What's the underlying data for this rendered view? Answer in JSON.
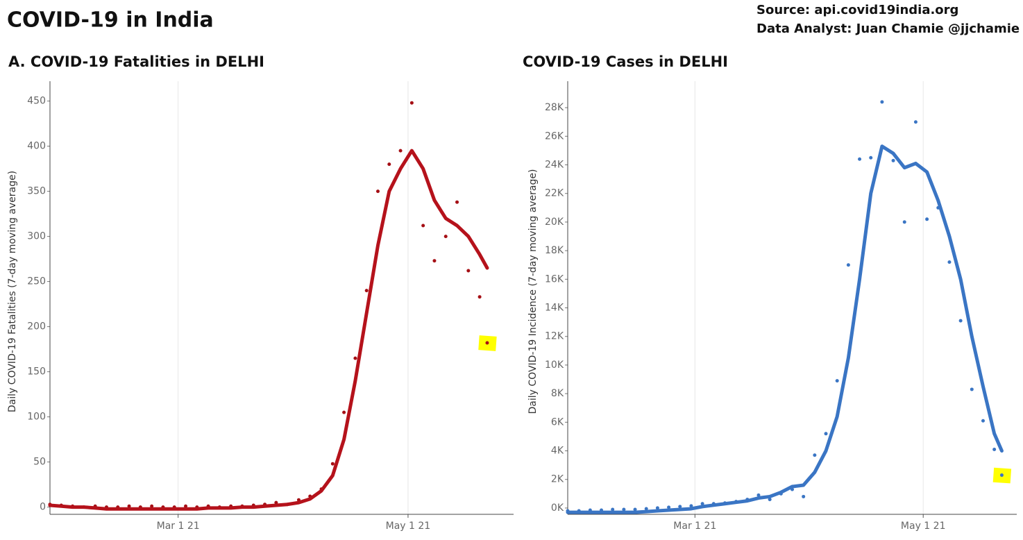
{
  "header": {
    "title": "COVID-19 in India",
    "source": "Source: api.covid19india.org",
    "analyst": "Data Analyst:  Juan Chamie @jjchamie"
  },
  "chart_data": [
    {
      "type": "dotline",
      "title": "A. COVID-19 Fatalities in DELHI",
      "y_label": "Daily COVID-19 Fatalities (7-day moving average)",
      "x": [
        "2021-01-26",
        "2021-01-29",
        "2021-02-01",
        "2021-02-04",
        "2021-02-07",
        "2021-02-10",
        "2021-02-13",
        "2021-02-16",
        "2021-02-19",
        "2021-02-22",
        "2021-02-25",
        "2021-02-28",
        "2021-03-03",
        "2021-03-06",
        "2021-03-09",
        "2021-03-12",
        "2021-03-15",
        "2021-03-18",
        "2021-03-21",
        "2021-03-24",
        "2021-03-27",
        "2021-03-30",
        "2021-04-02",
        "2021-04-05",
        "2021-04-08",
        "2021-04-11",
        "2021-04-14",
        "2021-04-17",
        "2021-04-20",
        "2021-04-23",
        "2021-04-26",
        "2021-04-29",
        "2021-05-02",
        "2021-05-05",
        "2021-05-08",
        "2021-05-11",
        "2021-05-14",
        "2021-05-17",
        "2021-05-20",
        "2021-05-22"
      ],
      "series": [
        {
          "marker": "dot",
          "color": "#a50f15",
          "values": [
            3,
            2,
            1,
            0,
            1,
            0,
            0,
            1,
            0,
            1,
            0,
            0,
            1,
            0,
            1,
            0,
            1,
            1,
            2,
            3,
            5,
            3,
            8,
            12,
            20,
            48,
            105,
            165,
            240,
            350,
            380,
            395,
            448,
            312,
            273,
            300,
            338,
            262,
            233,
            182
          ]
        },
        {
          "marker": "line",
          "color": "#b5121b",
          "values": [
            2,
            1,
            0,
            0,
            -1,
            -2,
            -2,
            -2,
            -2,
            -2,
            -2,
            -2,
            -2,
            -2,
            -1,
            -1,
            -1,
            0,
            0,
            1,
            2,
            3,
            5,
            9,
            18,
            35,
            75,
            140,
            215,
            290,
            350,
            375,
            395,
            375,
            340,
            320,
            312,
            300,
            280,
            265
          ]
        }
      ],
      "xlim": [
        "2021-01-26",
        "2021-05-29"
      ],
      "xticks": [
        {
          "value": "2021-03-01",
          "label": "Mar 1 21"
        },
        {
          "value": "2021-05-01",
          "label": "May 1 21"
        }
      ],
      "xgrid": true,
      "ylim": [
        -8,
        472
      ],
      "yticks": [
        0,
        50,
        100,
        150,
        200,
        250,
        300,
        350,
        400,
        450
      ],
      "highlight_last": true
    },
    {
      "type": "dotline",
      "title": "COVID-19 Cases in DELHI",
      "y_label": "Daily COVID-19 Incidence (7-day moving average)",
      "x": [
        "2021-01-26",
        "2021-01-29",
        "2021-02-01",
        "2021-02-04",
        "2021-02-07",
        "2021-02-10",
        "2021-02-13",
        "2021-02-16",
        "2021-02-19",
        "2021-02-22",
        "2021-02-25",
        "2021-02-28",
        "2021-03-03",
        "2021-03-06",
        "2021-03-09",
        "2021-03-12",
        "2021-03-15",
        "2021-03-18",
        "2021-03-21",
        "2021-03-24",
        "2021-03-27",
        "2021-03-30",
        "2021-04-02",
        "2021-04-05",
        "2021-04-08",
        "2021-04-11",
        "2021-04-14",
        "2021-04-17",
        "2021-04-20",
        "2021-04-23",
        "2021-04-26",
        "2021-04-29",
        "2021-05-02",
        "2021-05-05",
        "2021-05-08",
        "2021-05-11",
        "2021-05-14",
        "2021-05-17",
        "2021-05-20",
        "2021-05-22"
      ],
      "series": [
        {
          "marker": "dot",
          "color": "#3a75c4",
          "values": [
            -200,
            -200,
            -150,
            -150,
            -100,
            -100,
            -100,
            -50,
            0,
            50,
            100,
            150,
            300,
            300,
            350,
            450,
            600,
            900,
            600,
            1000,
            1300,
            800,
            3700,
            5200,
            8900,
            17000,
            24400,
            24500,
            28400,
            24300,
            20000,
            27000,
            20200,
            21000,
            17200,
            13100,
            8300,
            6100,
            4100,
            2300
          ]
        },
        {
          "marker": "line",
          "color": "#3a75c4",
          "values": [
            -300,
            -300,
            -300,
            -300,
            -300,
            -300,
            -300,
            -250,
            -200,
            -150,
            -100,
            -50,
            100,
            200,
            300,
            400,
            500,
            700,
            800,
            1100,
            1500,
            1600,
            2500,
            4000,
            6400,
            10500,
            16000,
            22000,
            25300,
            24800,
            23800,
            24100,
            23500,
            21500,
            19000,
            16000,
            12000,
            8500,
            5200,
            4000
          ]
        }
      ],
      "xlim": [
        "2021-01-26",
        "2021-05-26"
      ],
      "xticks": [
        {
          "value": "2021-03-01",
          "label": "Mar 1 21"
        },
        {
          "value": "2021-05-01",
          "label": "May 1 21"
        }
      ],
      "xgrid": true,
      "ylim": [
        -440,
        29850
      ],
      "yticks": [
        {
          "value": 0,
          "label": "0K"
        },
        {
          "value": 2000,
          "label": "2K"
        },
        {
          "value": 4000,
          "label": "4K"
        },
        {
          "value": 6000,
          "label": "6K"
        },
        {
          "value": 8000,
          "label": "8K"
        },
        {
          "value": 10000,
          "label": "10K"
        },
        {
          "value": 12000,
          "label": "12K"
        },
        {
          "value": 14000,
          "label": "14K"
        },
        {
          "value": 16000,
          "label": "16K"
        },
        {
          "value": 18000,
          "label": "18K"
        },
        {
          "value": 20000,
          "label": "20K"
        },
        {
          "value": 22000,
          "label": "22K"
        },
        {
          "value": 24000,
          "label": "24K"
        },
        {
          "value": 26000,
          "label": "26K"
        },
        {
          "value": 28000,
          "label": "28K"
        }
      ],
      "highlight_last": true
    }
  ]
}
